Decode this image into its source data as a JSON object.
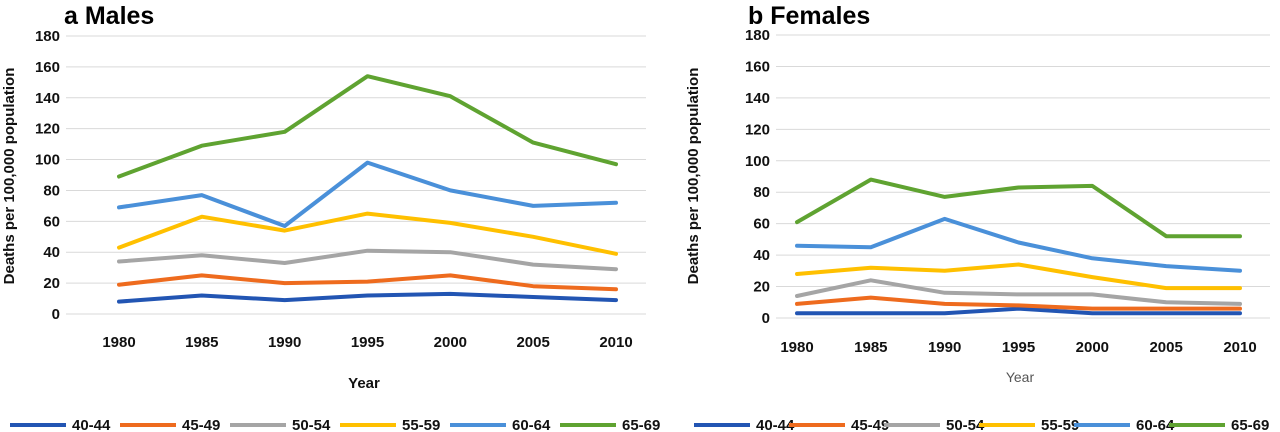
{
  "chart_data": [
    {
      "type": "line",
      "title": "a  Males",
      "xlabel": "Year",
      "ylabel": "Deaths per 100,000 population",
      "x": [
        "1980",
        "1985",
        "1990",
        "1995",
        "2000",
        "2005",
        "2010"
      ],
      "ylim": [
        0,
        180
      ],
      "yticks": [
        "0",
        "20",
        "40",
        "60",
        "80",
        "100",
        "120",
        "140",
        "160",
        "180"
      ],
      "grid": true,
      "legend": "bottom",
      "series": [
        {
          "name": "40-44",
          "color": "#2255b3",
          "values": [
            8,
            12,
            9,
            12,
            13,
            11,
            9
          ]
        },
        {
          "name": "45-49",
          "color": "#ee6b1e",
          "values": [
            19,
            25,
            20,
            21,
            25,
            18,
            16
          ]
        },
        {
          "name": "50-54",
          "color": "#a5a5a5",
          "values": [
            34,
            38,
            33,
            41,
            40,
            32,
            29
          ]
        },
        {
          "name": "55-59",
          "color": "#ffc000",
          "values": [
            43,
            63,
            54,
            65,
            59,
            50,
            39
          ]
        },
        {
          "name": "60-64",
          "color": "#4a90d9",
          "values": [
            69,
            77,
            57,
            98,
            80,
            70,
            72
          ]
        },
        {
          "name": "65-69",
          "color": "#5fa331",
          "values": [
            89,
            109,
            118,
            154,
            141,
            111,
            97
          ]
        }
      ]
    },
    {
      "type": "line",
      "title": "b  Females",
      "xlabel": "Year",
      "ylabel": "Deaths per 100,000 population",
      "x": [
        "1980",
        "1985",
        "1990",
        "1995",
        "2000",
        "2005",
        "2010"
      ],
      "ylim": [
        0,
        180
      ],
      "yticks": [
        "0",
        "20",
        "40",
        "60",
        "80",
        "100",
        "120",
        "140",
        "160",
        "180"
      ],
      "grid": true,
      "legend": "bottom",
      "series": [
        {
          "name": "40-44",
          "color": "#2255b3",
          "values": [
            3,
            3,
            3,
            6,
            3,
            3,
            3
          ]
        },
        {
          "name": "45-49",
          "color": "#ee6b1e",
          "values": [
            9,
            13,
            9,
            8,
            6,
            6,
            6
          ]
        },
        {
          "name": "50-54",
          "color": "#a5a5a5",
          "values": [
            14,
            24,
            16,
            15,
            15,
            10,
            9
          ]
        },
        {
          "name": "55-59",
          "color": "#ffc000",
          "values": [
            28,
            32,
            30,
            34,
            26,
            19,
            19
          ]
        },
        {
          "name": "60-64",
          "color": "#4a90d9",
          "values": [
            46,
            45,
            63,
            48,
            38,
            33,
            30
          ]
        },
        {
          "name": "65-69",
          "color": "#5fa331",
          "values": [
            61,
            88,
            77,
            83,
            84,
            52,
            52
          ]
        }
      ]
    }
  ]
}
